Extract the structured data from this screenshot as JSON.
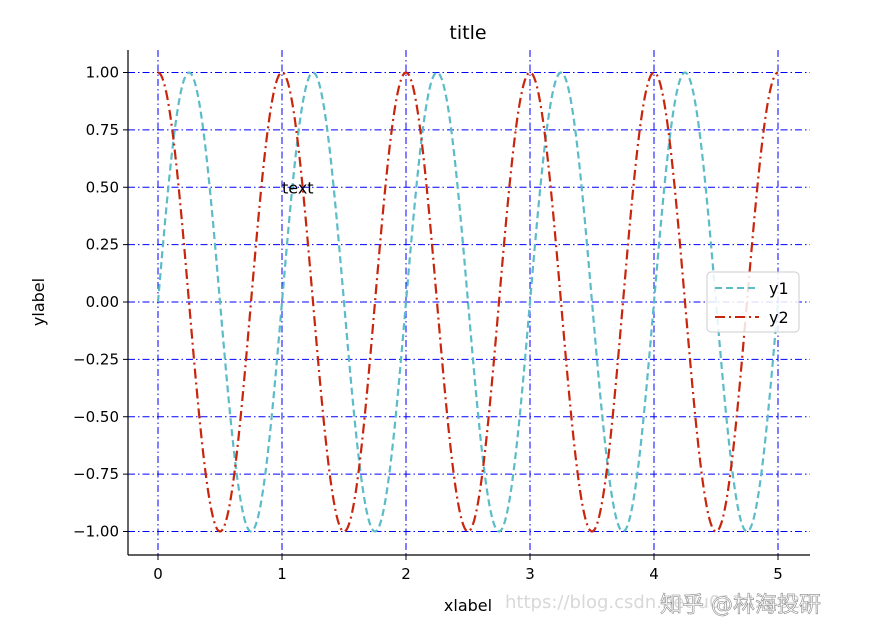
{
  "chart_data": {
    "type": "line",
    "title": "title",
    "xlabel": "xlabel",
    "ylabel": "ylabel",
    "xlim": [
      -0.25,
      5.25
    ],
    "ylim": [
      -1.1,
      1.1
    ],
    "xticks": [
      0,
      1,
      2,
      3,
      4,
      5
    ],
    "xtick_labels": [
      "0",
      "1",
      "2",
      "3",
      "4",
      "5"
    ],
    "yticks": [
      1.0,
      0.75,
      0.5,
      0.25,
      0.0,
      -0.25,
      -0.5,
      -0.75,
      -1.0
    ],
    "ytick_labels": [
      "1.00",
      "0.75",
      "0.50",
      "0.25",
      "0.00",
      "−0.25",
      "−0.50",
      "−0.75",
      "−1.00"
    ],
    "grid": true,
    "grid_color": "#0000ff",
    "legend_position": "center-right",
    "x_range": [
      0,
      5
    ],
    "series": [
      {
        "name": "y1",
        "function": "sin(2πx)",
        "color": "#5bbcc8",
        "linestyle": "dashed"
      },
      {
        "name": "y2",
        "function": "cos(2πx)",
        "color": "#c8250c",
        "linestyle": "dashdot"
      }
    ],
    "annotations": [
      {
        "text": "text",
        "x": 1.0,
        "y": 0.5
      }
    ]
  },
  "watermark": {
    "url": "https://blog.csdn.net/u013421629",
    "text": "知乎 @林海投研"
  }
}
